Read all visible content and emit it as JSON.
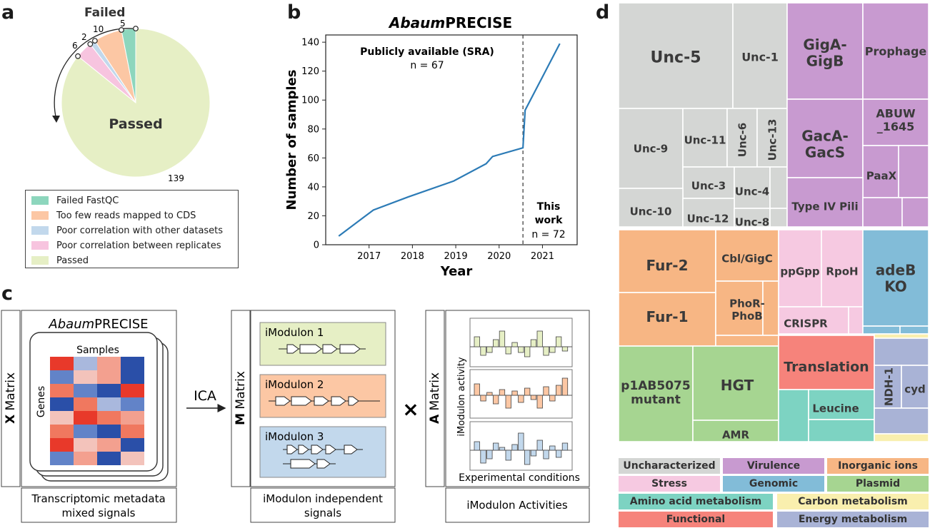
{
  "panel_labels": {
    "a": "a",
    "b": "b",
    "c": "c",
    "d": "d"
  },
  "colors": {
    "failed_fastqc": "#8dd6bd",
    "too_few_reads": "#fcc7a4",
    "poor_corr_datasets": "#c2d8ec",
    "poor_corr_replicates": "#f7c4df",
    "passed": "#e6efc5",
    "line": "#2c7bb6",
    "uncharacterized": "#d4d6d4",
    "virulence": "#c89ad0",
    "inorganic_ions": "#f7b684",
    "stress": "#f6c9e1",
    "genomic": "#82bcd8",
    "plasmid": "#a6d591",
    "amino_acid": "#7dd3c2",
    "carbon": "#f9efae",
    "functional": "#f6837b",
    "energy": "#a9b3d6"
  },
  "chart_data": [
    {
      "panel": "a",
      "type": "pie",
      "title": "Failed",
      "center_label": "Passed",
      "slices": [
        {
          "label": "Passed",
          "value": 139,
          "color_key": "passed"
        },
        {
          "label": "Poor correlation between replicates",
          "value": 6,
          "color_key": "poor_corr_replicates"
        },
        {
          "label": "Poor correlation with other datasets",
          "value": 2,
          "color_key": "poor_corr_datasets"
        },
        {
          "label": "Too few reads mapped to CDS",
          "value": 10,
          "color_key": "too_few_reads"
        },
        {
          "label": "Failed FastQC",
          "value": 5,
          "color_key": "failed_fastqc"
        }
      ],
      "value_labels": [
        "6",
        "2",
        "10",
        "5",
        "139"
      ],
      "legend": [
        "Failed FastQC",
        "Too few reads mapped to CDS",
        "Poor correlation with other datasets",
        "Poor correlation between replicates",
        "Passed"
      ]
    },
    {
      "panel": "b",
      "type": "line",
      "title_italic": "Abaum",
      "title_rest": "PRECISE",
      "xlabel": "Year",
      "ylabel": "Number of samples",
      "xticks": [
        "2017",
        "2018",
        "2019",
        "2020",
        "2021"
      ],
      "yticks": [
        "0",
        "20",
        "40",
        "60",
        "80",
        "100",
        "120",
        "140"
      ],
      "ylim": [
        0,
        145
      ],
      "xlim": [
        2016.0,
        2021.8
      ],
      "points": [
        [
          2016.3,
          6
        ],
        [
          2017.1,
          24
        ],
        [
          2017.9,
          33
        ],
        [
          2018.95,
          44
        ],
        [
          2019.7,
          56
        ],
        [
          2019.85,
          61
        ],
        [
          2020.55,
          67
        ],
        [
          2020.6,
          93
        ],
        [
          2021.4,
          139
        ]
      ],
      "divider_x": 2020.55,
      "annotations": [
        {
          "text": "Publicly available (SRA)",
          "bold": true
        },
        {
          "text": "n = 67",
          "bold": false
        },
        {
          "text": "This",
          "bold": true
        },
        {
          "text": "work",
          "bold": true
        },
        {
          "text": "n = 72",
          "bold": false
        }
      ]
    },
    {
      "panel": "d",
      "type": "treemap",
      "tiles": [
        {
          "label": "Unc-5",
          "group": "uncharacterized"
        },
        {
          "label": "Unc-1",
          "group": "uncharacterized"
        },
        {
          "label": "Unc-9",
          "group": "uncharacterized"
        },
        {
          "label": "Unc-11",
          "group": "uncharacterized"
        },
        {
          "label": "Unc-6",
          "group": "uncharacterized"
        },
        {
          "label": "Unc-13",
          "group": "uncharacterized"
        },
        {
          "label": "Unc-3",
          "group": "uncharacterized"
        },
        {
          "label": "Unc-4",
          "group": "uncharacterized"
        },
        {
          "label": "Unc-12",
          "group": "uncharacterized"
        },
        {
          "label": "Unc-10",
          "group": "uncharacterized"
        },
        {
          "label": "Unc-8",
          "group": "uncharacterized"
        },
        {
          "label": "GigA-\nGigB",
          "group": "virulence"
        },
        {
          "label": "Prophage",
          "group": "virulence"
        },
        {
          "label": "GacA-\nGacS",
          "group": "virulence"
        },
        {
          "label": "ABUW\n_1645",
          "group": "virulence"
        },
        {
          "label": "PaaX",
          "group": "virulence"
        },
        {
          "label": "Type IV Pili",
          "group": "virulence"
        },
        {
          "label": "Fur-2",
          "group": "inorganic_ions"
        },
        {
          "label": "Fur-1",
          "group": "inorganic_ions"
        },
        {
          "label": "Cbl/GigC",
          "group": "inorganic_ions"
        },
        {
          "label": "PhoR-\nPhoB",
          "group": "inorganic_ions"
        },
        {
          "label": "ppGpp",
          "group": "stress"
        },
        {
          "label": "RpoH",
          "group": "stress"
        },
        {
          "label": "CRISPR",
          "group": "stress"
        },
        {
          "label": "adeB\nKO",
          "group": "genomic"
        },
        {
          "label": "p1AB5075\nmutant",
          "group": "plasmid"
        },
        {
          "label": "HGT",
          "group": "plasmid"
        },
        {
          "label": "AMR",
          "group": "plasmid"
        },
        {
          "label": "Translation",
          "group": "functional"
        },
        {
          "label": "Leucine",
          "group": "amino_acid"
        },
        {
          "label": "NDH-1",
          "group": "energy"
        },
        {
          "label": "cyd",
          "group": "energy"
        }
      ],
      "legend": [
        {
          "label": "Uncharacterized",
          "color_key": "uncharacterized"
        },
        {
          "label": "Virulence",
          "color_key": "virulence"
        },
        {
          "label": "Inorganic ions",
          "color_key": "inorganic_ions"
        },
        {
          "label": "Stress",
          "color_key": "stress"
        },
        {
          "label": "Genomic",
          "color_key": "genomic"
        },
        {
          "label": "Plasmid",
          "color_key": "plasmid"
        },
        {
          "label": "Amino acid metabolism",
          "color_key": "amino_acid"
        },
        {
          "label": "Carbon metabolism",
          "color_key": "carbon"
        },
        {
          "label": "Functional",
          "color_key": "functional"
        },
        {
          "label": "Energy metabolism",
          "color_key": "energy"
        }
      ]
    }
  ],
  "panel_c": {
    "x_matrix": {
      "side_bold": "X",
      "side_rest": " Matrix",
      "title_italic": "Abaum",
      "title_rest": "PRECISE",
      "samples": "Samples",
      "genes": "Genes",
      "caption_line1": "Transcriptomic metadata",
      "caption_line2": "mixed signals"
    },
    "ica": "ICA",
    "m_matrix": {
      "side_bold": "M",
      "side_rest": " Matrix",
      "modules": [
        "iModulon 1",
        "iModulon 2",
        "iModulon 3"
      ],
      "caption_line1": "iModulon independent",
      "caption_line2": "signals"
    },
    "times": "×",
    "a_matrix": {
      "side_bold": "A",
      "side_rest": " Matrix",
      "ylabel": "iModulon activity",
      "xlabel": "Experimental conditions",
      "caption": "iModulon Activities"
    }
  }
}
